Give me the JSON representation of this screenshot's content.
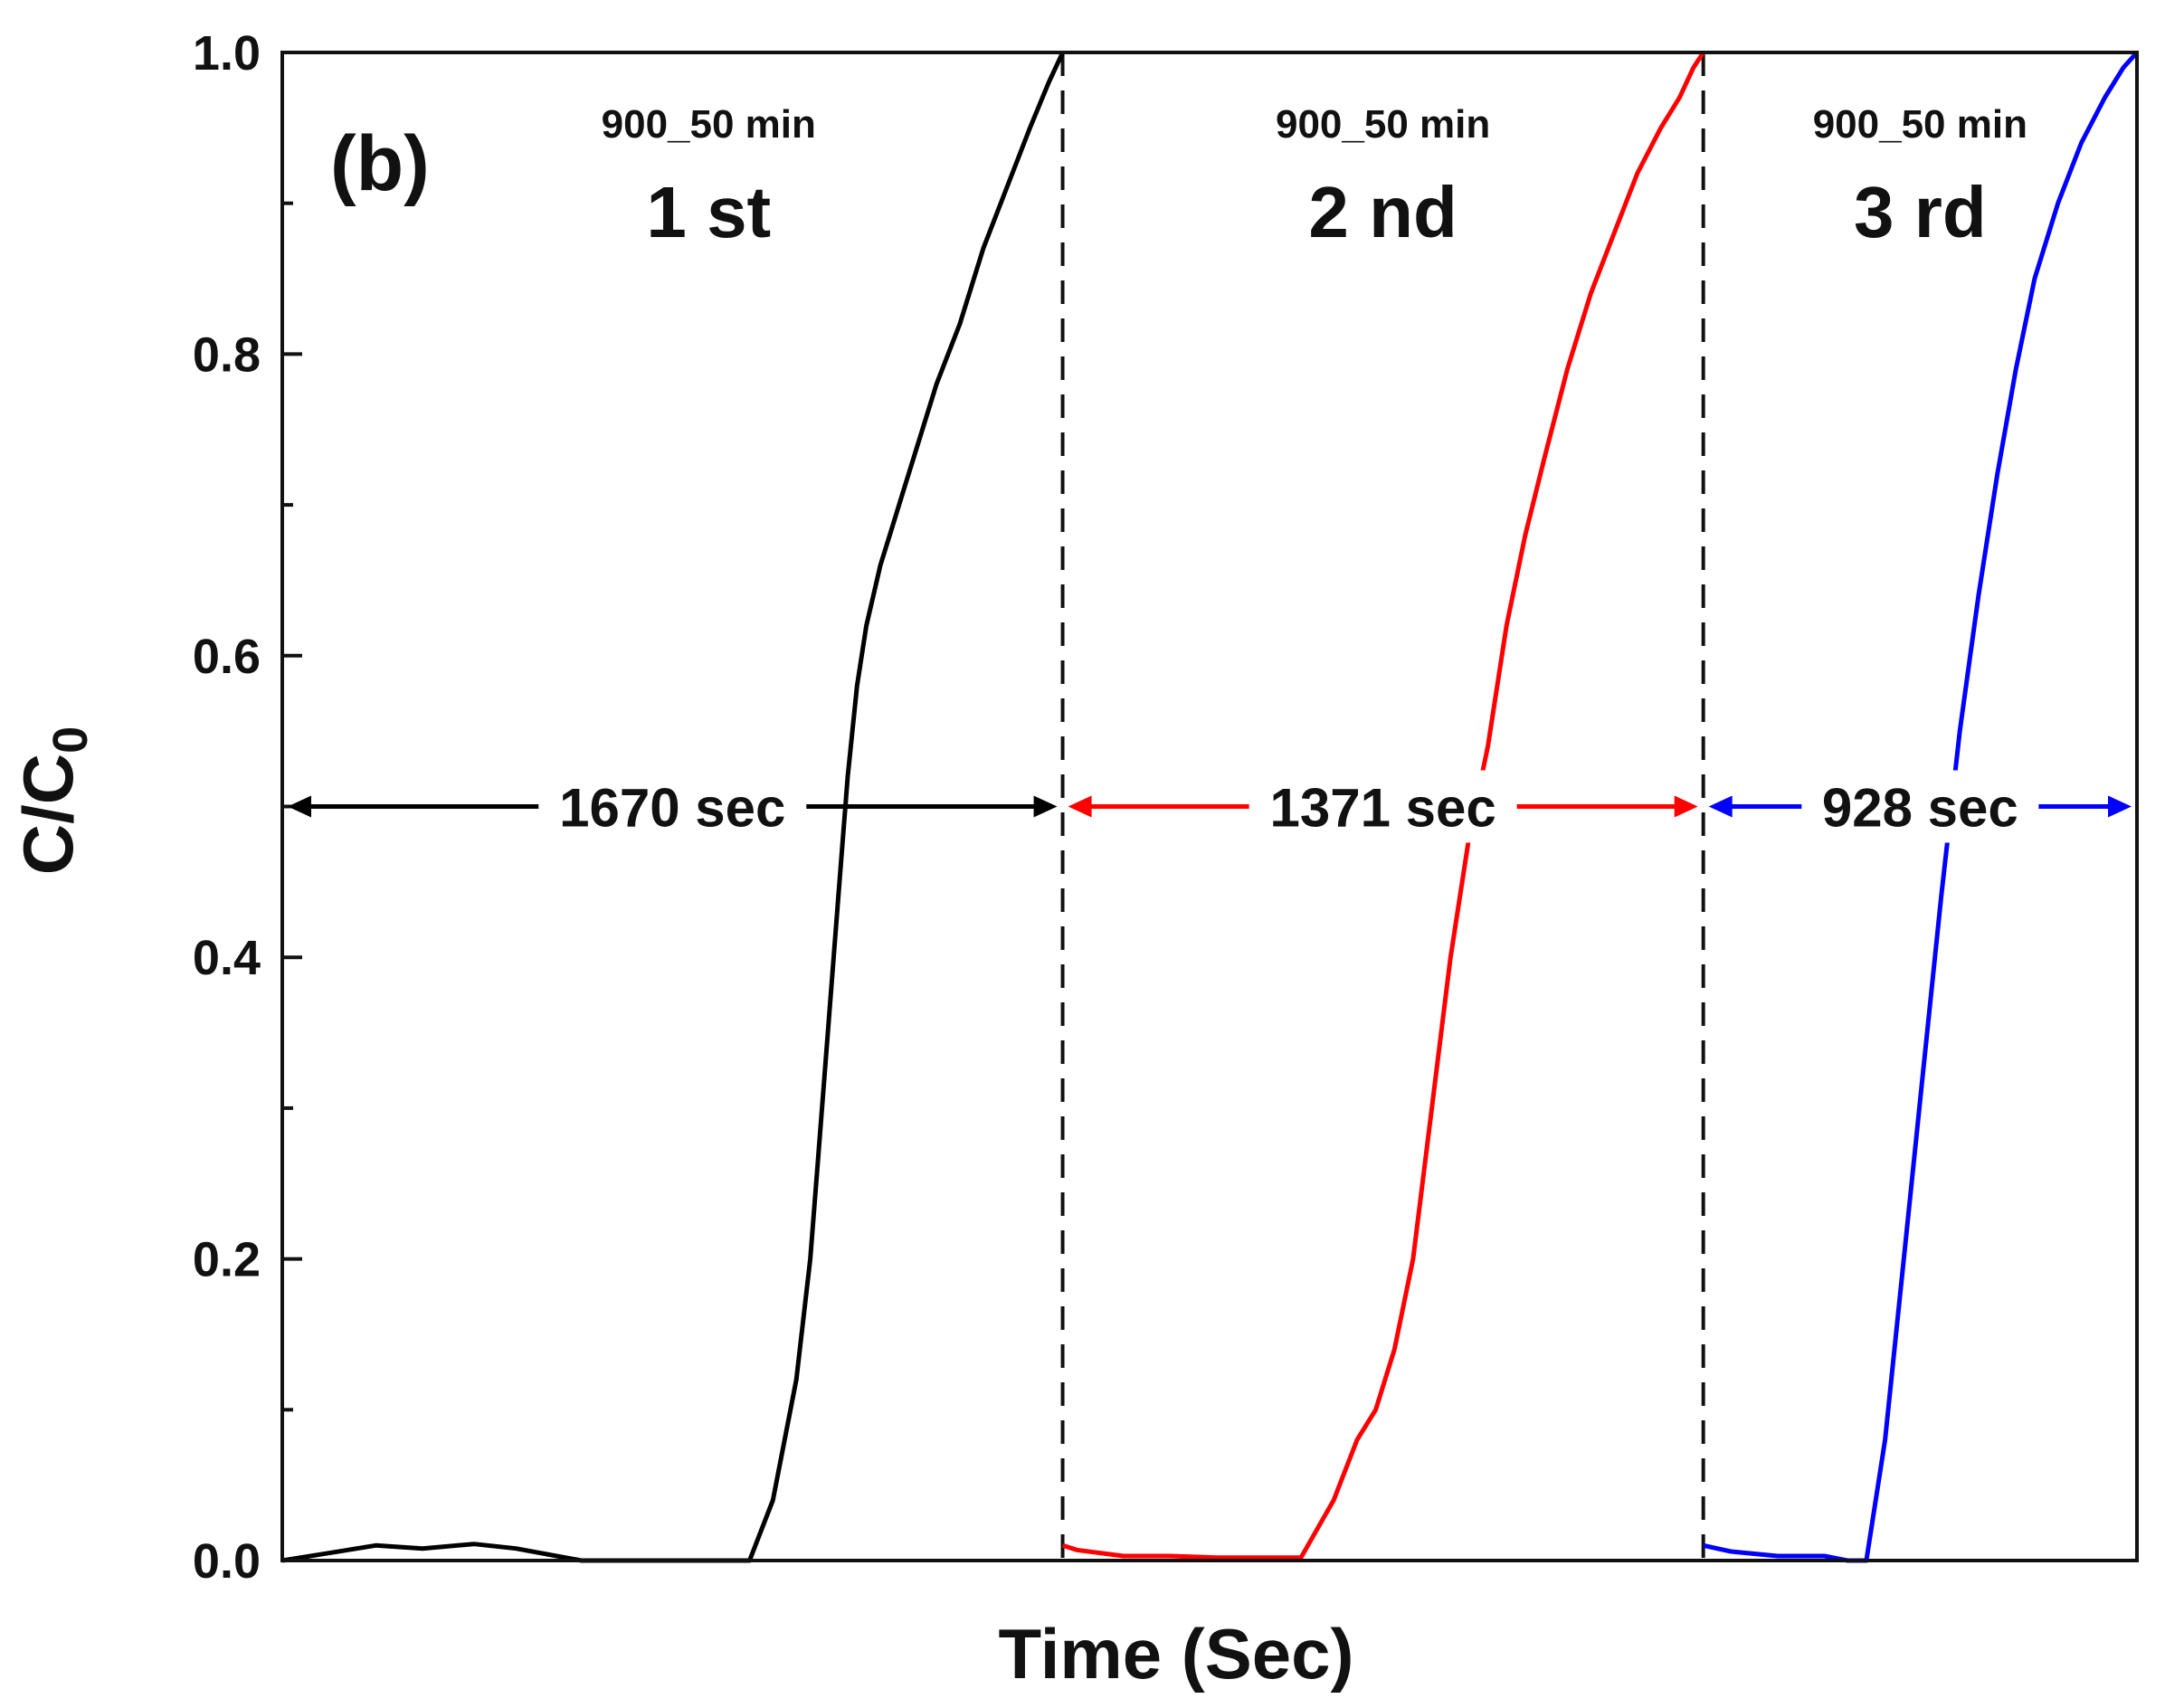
{
  "chart_data": {
    "type": "line",
    "panel_label": "(b)",
    "xlabel": "Time (Sec)",
    "ylabel": {
      "main": "C/C",
      "subscript": "0"
    },
    "ylim": [
      0,
      1
    ],
    "y_major_ticks": [
      "0.0",
      "0.2",
      "0.4",
      "0.6",
      "0.8",
      "1.0"
    ],
    "y_minor_ticks": [
      0.1,
      0.3,
      0.5,
      0.7,
      0.9
    ],
    "xlim": [
      0,
      3969
    ],
    "x_ticks_shown": false,
    "dividers": [
      1670,
      3041
    ],
    "cycles": [
      {
        "condition": "900_50 min",
        "name": "1 st",
        "color": "#000000",
        "duration_label": "1670 sec",
        "start": 0,
        "end": 1670
      },
      {
        "condition": "900_50 min",
        "name": "2 nd",
        "color": "#ff0000",
        "duration_label": "1371 sec",
        "start": 1670,
        "end": 3041
      },
      {
        "condition": "900_50 min",
        "name": "3 rd",
        "color": "#0000ff",
        "duration_label": "928 sec",
        "start": 3041,
        "end": 3969
      }
    ],
    "series": [
      {
        "name": "1 st",
        "color": "#000000",
        "x": [
          0,
          100,
          200,
          300,
          410,
          500,
          640,
          700,
          1000,
          1050,
          1100,
          1130,
          1150,
          1170,
          1190,
          1210,
          1230,
          1250,
          1265,
          1280,
          1300,
          1330,
          1360,
          1400,
          1450,
          1500,
          1550,
          1600,
          1640,
          1670
        ],
        "y": [
          0,
          0.005,
          0.01,
          0.008,
          0.011,
          0.008,
          0,
          0,
          0,
          0.04,
          0.12,
          0.2,
          0.28,
          0.36,
          0.44,
          0.52,
          0.58,
          0.62,
          0.64,
          0.66,
          0.68,
          0.71,
          0.74,
          0.78,
          0.82,
          0.87,
          0.91,
          0.95,
          0.98,
          1.0
        ]
      },
      {
        "name": "2 nd",
        "color": "#ff0000",
        "x": [
          1670,
          1700,
          1800,
          1900,
          2000,
          2100,
          2180,
          2250,
          2300,
          2340,
          2380,
          2420,
          2460,
          2500,
          2540,
          2580,
          2620,
          2660,
          2700,
          2750,
          2800,
          2850,
          2900,
          2950,
          2990,
          3020,
          3041
        ],
        "y": [
          0.01,
          0.007,
          0.003,
          0.003,
          0.002,
          0.002,
          0.002,
          0.04,
          0.08,
          0.1,
          0.14,
          0.2,
          0.3,
          0.4,
          0.48,
          0.54,
          0.62,
          0.68,
          0.73,
          0.79,
          0.84,
          0.88,
          0.92,
          0.95,
          0.97,
          0.99,
          1.0
        ]
      },
      {
        "name": "3 rd",
        "color": "#0000ff",
        "x": [
          3041,
          3100,
          3200,
          3300,
          3350,
          3390,
          3430,
          3470,
          3510,
          3550,
          3590,
          3630,
          3670,
          3710,
          3750,
          3800,
          3850,
          3900,
          3940,
          3969
        ],
        "y": [
          0.01,
          0.006,
          0.003,
          0.003,
          0,
          0,
          0.08,
          0.2,
          0.32,
          0.44,
          0.55,
          0.64,
          0.72,
          0.79,
          0.85,
          0.9,
          0.94,
          0.97,
          0.99,
          1.0
        ]
      }
    ]
  }
}
